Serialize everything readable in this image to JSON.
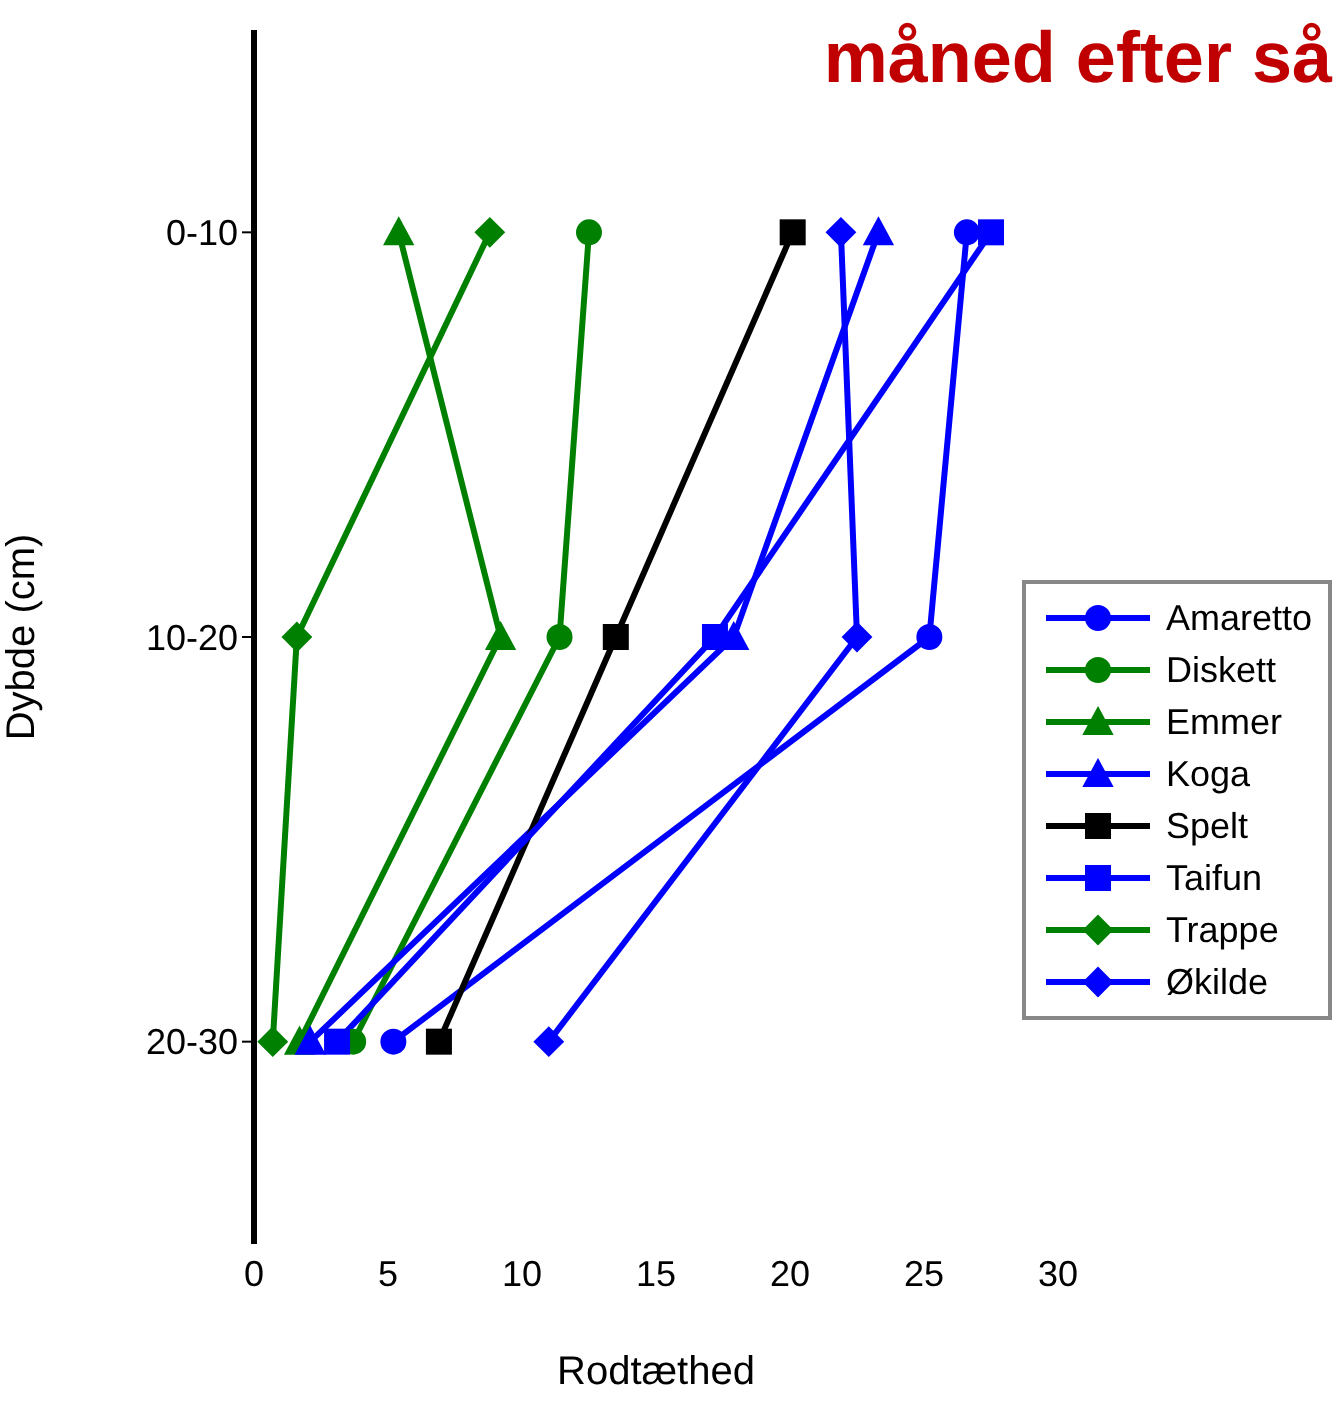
{
  "chart_data": {
    "type": "line",
    "title": "måned efter så",
    "orientation": "horizontal",
    "xlabel": "Rodtæthed",
    "ylabel": "Dybde (cm)",
    "categories": [
      "0-10",
      "10-20",
      "20-30"
    ],
    "xlim": [
      0,
      30
    ],
    "xticks": [
      0,
      5,
      10,
      15,
      20,
      25,
      30
    ],
    "grid": false,
    "legend": "right",
    "series": [
      {
        "name": "Amaretto",
        "color": "#0000ff",
        "marker": "circle",
        "values": [
          26.6,
          25.2,
          5.2
        ]
      },
      {
        "name": "Diskett",
        "color": "#008000",
        "marker": "circle",
        "values": [
          12.5,
          11.4,
          3.7
        ]
      },
      {
        "name": "Emmer",
        "color": "#008000",
        "marker": "triangle",
        "values": [
          5.4,
          9.2,
          1.7
        ]
      },
      {
        "name": "Koga",
        "color": "#0000ff",
        "marker": "triangle",
        "values": [
          23.3,
          17.9,
          2.1
        ]
      },
      {
        "name": "Spelt",
        "color": "#000000",
        "marker": "square",
        "values": [
          20.1,
          13.5,
          6.9
        ]
      },
      {
        "name": "Taifun",
        "color": "#0000ff",
        "marker": "square",
        "values": [
          27.5,
          17.2,
          3.1
        ]
      },
      {
        "name": "Trappe",
        "color": "#008000",
        "marker": "diamond",
        "values": [
          8.8,
          1.6,
          0.7
        ]
      },
      {
        "name": "Økilde",
        "color": "#0000ff",
        "marker": "diamond",
        "values": [
          21.9,
          22.5,
          11.0
        ]
      }
    ]
  }
}
